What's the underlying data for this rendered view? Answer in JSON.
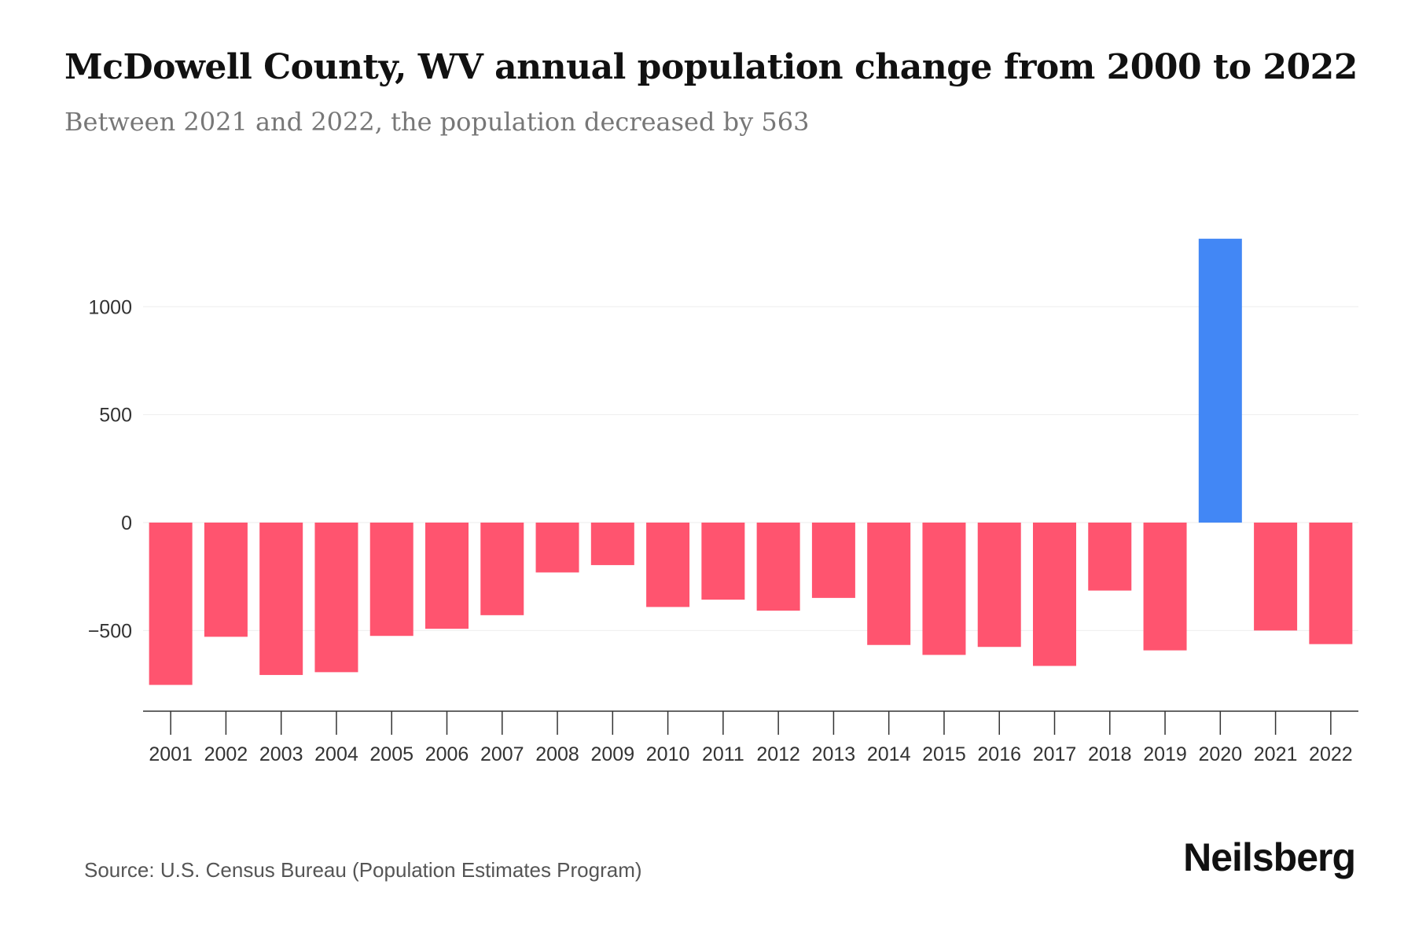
{
  "chart_data": {
    "type": "bar",
    "title": "McDowell County, WV annual population change from 2000 to 2022",
    "subtitle": "Between 2021 and 2022, the population decreased by 563",
    "xlabel": "",
    "ylabel": "",
    "ylim": [
      -880,
      1400
    ],
    "yticks": [
      -500,
      0,
      500,
      1000
    ],
    "ytick_labels": [
      "−500",
      "0",
      "500",
      "1000"
    ],
    "grid": true,
    "categories": [
      "2001",
      "2002",
      "2003",
      "2004",
      "2005",
      "2006",
      "2007",
      "2008",
      "2009",
      "2010",
      "2011",
      "2012",
      "2013",
      "2014",
      "2015",
      "2016",
      "2017",
      "2018",
      "2019",
      "2020",
      "2021",
      "2022"
    ],
    "values": [
      -752,
      -529,
      -706,
      -693,
      -525,
      -492,
      -429,
      -231,
      -197,
      -391,
      -357,
      -408,
      -349,
      -567,
      -613,
      -576,
      -664,
      -315,
      -592,
      1315,
      -500,
      -563
    ],
    "colors": {
      "positive": "#4287f5",
      "negative": "#ff546f"
    }
  },
  "footer": {
    "source": "Source: U.S. Census Bureau (Population Estimates Program)",
    "logo": "Neilsberg"
  }
}
